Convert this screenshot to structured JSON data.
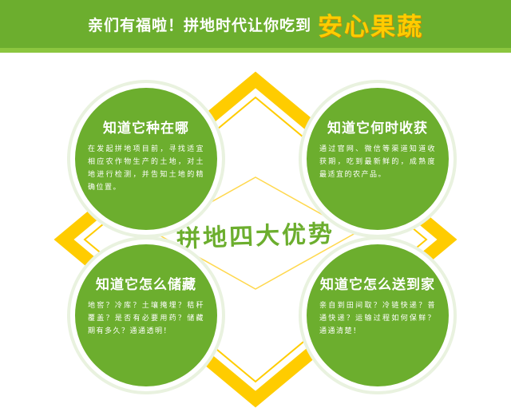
{
  "banner": {
    "main_text": "亲们有福啦！拼地时代让你吃到",
    "highlight_text": "安心果蔬"
  },
  "center": {
    "title": "拼地四大优势"
  },
  "cards": [
    {
      "title": "知道它种在哪",
      "desc": "在发起拼地项目前，寻找适宜相应农作物生产的土地，对土地进行检测，并告知土地的精确位置。"
    },
    {
      "title": "知道它何时收获",
      "desc": "通过官网、微信等渠道知道收获期，吃到最新鲜的，成熟度最适宜的农产品。"
    },
    {
      "title": "知道它怎么储藏",
      "desc": "地窖？冷库？土壤掩埋？秸秆覆盖？是否有必要用药？储藏期有多久？通通透明！"
    },
    {
      "title": "知道它怎么送到家",
      "desc": "亲自到田间取？冷链快递？普通快递？运输过程如何保鲜？通通清楚！"
    }
  ],
  "colors": {
    "green": "#6cae2e",
    "light_green": "#8cc63f",
    "yellow": "#ffcc00"
  }
}
